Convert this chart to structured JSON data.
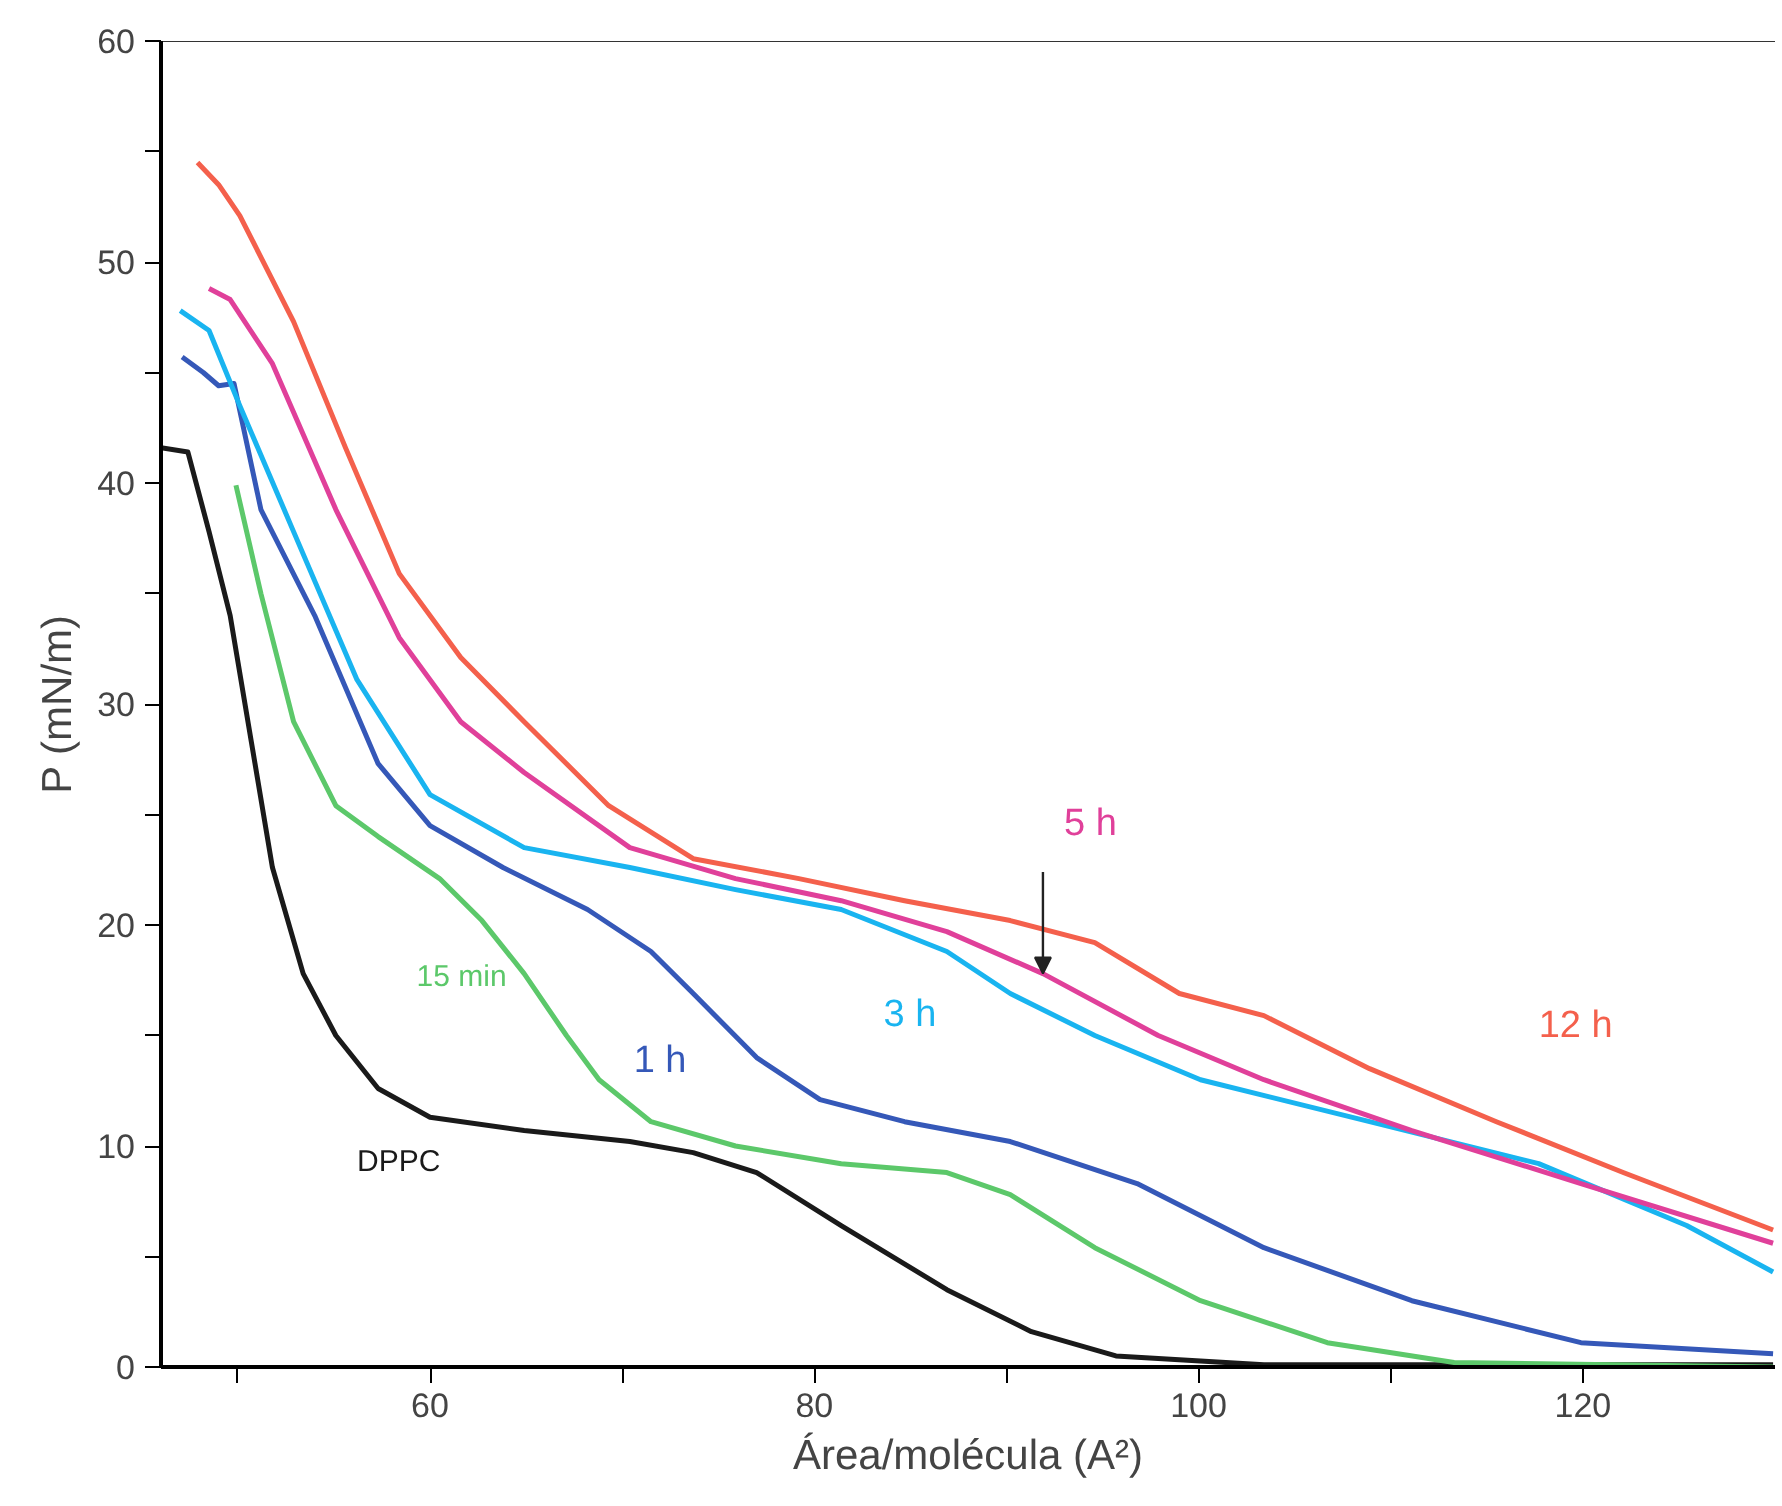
{
  "chart_data": {
    "type": "line",
    "xlabel": "Área/molécula (A²)",
    "ylabel": "P (mN/m)",
    "xlim": [
      46,
      130
    ],
    "ylim": [
      0,
      60
    ],
    "xticks": [
      {
        "value": 50,
        "label": null
      },
      60,
      {
        "value": 70,
        "label": null
      },
      80,
      {
        "value": 90,
        "label": null
      },
      100,
      {
        "value": 110,
        "label": null
      },
      120
    ],
    "yticks": [
      0,
      {
        "value": 5,
        "label": null
      },
      10,
      {
        "value": 15,
        "label": null
      },
      20,
      {
        "value": 25,
        "label": null
      },
      30,
      {
        "value": 35,
        "label": null
      },
      40,
      {
        "value": 45,
        "label": null
      },
      50,
      {
        "value": 55,
        "label": null
      },
      60
    ],
    "grid": false,
    "legend": false,
    "marker": "none",
    "line_style": "solid",
    "series": [
      {
        "name": "DPPC",
        "color": "#1a1a1a",
        "x": [
          46.0,
          47.4,
          48.5,
          49.6,
          50.7,
          51.8,
          53.4,
          55.1,
          57.3,
          60.0,
          64.9,
          70.4,
          73.7,
          77.0,
          81.4,
          86.9,
          91.3,
          95.7,
          103.4,
          129.9
        ],
        "values": [
          41.6,
          41.4,
          37.8,
          34.0,
          28.3,
          22.6,
          17.8,
          15.0,
          12.6,
          11.3,
          10.7,
          10.2,
          9.7,
          8.8,
          6.4,
          3.5,
          1.6,
          0.5,
          0.1,
          0.1
        ]
      },
      {
        "name": "15 min",
        "color": "#5cc86a",
        "x": [
          49.9,
          51.2,
          52.9,
          55.1,
          57.3,
          60.5,
          62.7,
          64.9,
          67.1,
          68.8,
          71.5,
          75.9,
          81.4,
          86.9,
          90.2,
          94.6,
          100.1,
          106.7,
          113.3,
          129.9
        ],
        "values": [
          39.9,
          35.0,
          29.2,
          25.4,
          24.0,
          22.1,
          20.2,
          17.8,
          15.0,
          13.0,
          11.1,
          10.0,
          9.2,
          8.8,
          7.8,
          5.4,
          3.0,
          1.1,
          0.2,
          0.0
        ]
      },
      {
        "name": "1 h",
        "color": "#3558b8",
        "x": [
          47.1,
          48.2,
          49.0,
          49.8,
          51.2,
          54.0,
          57.3,
          60.0,
          63.8,
          68.2,
          71.5,
          73.7,
          77.0,
          80.3,
          84.7,
          90.2,
          96.8,
          103.4,
          111.1,
          119.9,
          129.9
        ],
        "values": [
          45.7,
          45.0,
          44.4,
          44.5,
          38.8,
          34.0,
          27.3,
          24.5,
          22.6,
          20.7,
          18.8,
          16.9,
          14.0,
          12.1,
          11.1,
          10.2,
          8.3,
          5.4,
          3.0,
          1.1,
          0.6
        ]
      },
      {
        "name": "3 h",
        "color": "#19b4f0",
        "x": [
          47.0,
          48.5,
          50.1,
          52.9,
          56.2,
          60.0,
          64.9,
          70.4,
          75.9,
          81.4,
          86.9,
          90.2,
          94.6,
          100.1,
          108.9,
          117.7,
          125.4,
          129.9
        ],
        "values": [
          47.8,
          46.9,
          43.5,
          37.8,
          31.1,
          25.9,
          23.5,
          22.6,
          21.6,
          20.7,
          18.8,
          16.9,
          15.0,
          13.0,
          11.1,
          9.2,
          6.4,
          4.3
        ]
      },
      {
        "name": "5 h",
        "color": "#e0409a",
        "x": [
          48.5,
          49.6,
          51.8,
          55.1,
          58.4,
          61.6,
          64.9,
          70.4,
          75.9,
          81.4,
          86.9,
          91.9,
          97.9,
          103.4,
          111.1,
          119.9,
          129.9
        ],
        "values": [
          48.8,
          48.3,
          45.4,
          38.8,
          33.0,
          29.2,
          26.9,
          23.5,
          22.1,
          21.1,
          19.7,
          17.8,
          15.0,
          13.0,
          10.7,
          8.3,
          5.6
        ]
      },
      {
        "name": "12 h",
        "color": "#f4604c",
        "x": [
          47.9,
          49.0,
          50.1,
          52.9,
          55.6,
          58.4,
          61.6,
          64.9,
          69.3,
          73.7,
          79.2,
          84.7,
          90.2,
          94.6,
          99.0,
          103.4,
          108.9,
          115.5,
          122.1,
          129.9
        ],
        "values": [
          54.5,
          53.5,
          52.1,
          47.3,
          41.6,
          35.9,
          32.1,
          29.2,
          25.4,
          23.0,
          22.1,
          21.1,
          20.2,
          19.2,
          16.9,
          15.9,
          13.5,
          11.1,
          8.8,
          6.2
        ]
      }
    ]
  }
}
